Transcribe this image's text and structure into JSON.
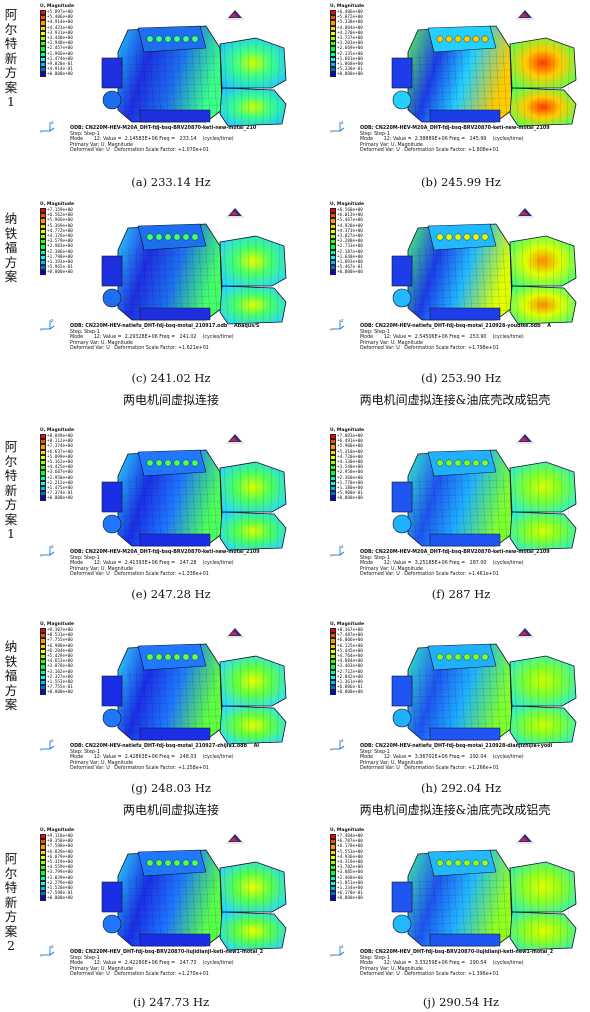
{
  "group_labels": [
    {
      "text": "阿尔特新方案1",
      "top": 8
    },
    {
      "text": "纳铁福方案",
      "top": 212
    },
    {
      "text": "阿尔特新方案1",
      "top": 440
    },
    {
      "text": "纳铁福方案",
      "top": 640
    },
    {
      "text": "阿尔特新方案2",
      "top": 852
    }
  ],
  "row_subcaptions": [
    {
      "left": "两电机间虚拟连接",
      "right": "两电机间虚拟连接&油底壳改成铝壳"
    },
    {
      "left": "两电机间虚拟连接",
      "right": "两电机间虚拟连接&油底壳改成铝壳"
    }
  ],
  "legend_title": "U, Magnitude",
  "legend_colors": [
    "#ff0000",
    "#ff4d00",
    "#ff9900",
    "#ffd000",
    "#e8ff00",
    "#99ff00",
    "#3dff00",
    "#00ff44",
    "#00ffa0",
    "#00ffee",
    "#00b8ff",
    "#0066ff",
    "#0000ff"
  ],
  "info_labels": {
    "step": "Step: Step-1",
    "primary": "Primary Var: U, Magnitude",
    "deformed": "Deformed Var: U   Deformation Scale Factor: "
  },
  "panels": [
    {
      "caption": "(a) 233.14 Hz",
      "odb": "ODB: CN220M-HEV-M20A_DHT-fdj-bsq-BRV20870-keti-new-motai_210",
      "mode": "Mode       12: Value =  2.14583E+06 Freq =   233.14    (cycles/time)",
      "scale": "+1.070e+01",
      "ticks": [
        "+5.897e+00",
        "+5.406e+00",
        "+4.914e+00",
        "+4.423e+00",
        "+3.931e+00",
        "+3.440e+00",
        "+2.948e+00",
        "+2.457e+00",
        "+1.966e+00",
        "+1.474e+00",
        "+9.828e-01",
        "+4.914e-01",
        "+0.000e+00"
      ]
    },
    {
      "caption": "(b) 245.99 Hz",
      "odb": "ODB: CN220M-HEV-M20A_DHT-fdj-bsq-BRV20870-keti-new-motai_2109",
      "mode": "Mode       12: Value =  2.38889E+06 Freq =   245.99    (cycles/time)",
      "scale": "+1.808e+01",
      "ticks": [
        "+6.406e+00",
        "+5.872e+00",
        "+5.338e+00",
        "+4.804e+00",
        "+4.270e+00",
        "+3.737e+00",
        "+3.203e+00",
        "+2.669e+00",
        "+2.135e+00",
        "+1.601e+00",
        "+1.068e+00",
        "+5.338e-01",
        "+0.000e+00"
      ]
    },
    {
      "caption": "(c) 241.02 Hz",
      "odb": "ODB: CN220M-HEV-natiefu_DHT-fdj-bsq-motai_210917.odb    Abaqus/S",
      "mode": "Mode       12: Value =  2.29328E+06 Freq =   241.02    (cycles/time)",
      "scale": "+1.621e+01",
      "ticks": [
        "+7.159e+00",
        "+6.562e+00",
        "+5.966e+00",
        "+5.369e+00",
        "+4.772e+00",
        "+4.176e+00",
        "+3.579e+00",
        "+2.983e+00",
        "+2.386e+00",
        "+1.790e+00",
        "+1.193e+00",
        "+5.965e-01",
        "+0.000e+00"
      ]
    },
    {
      "caption": "(d) 253.90 Hz",
      "odb": "ODB: CN220M-HEV-natiefu_DHT-fdj-bsq-motai_210928-youdike.odb    A",
      "mode": "Mode       12: Value =  2.54506E+06 Freq =   253.90    (cycles/time)",
      "scale": "+1.798e+01",
      "ticks": [
        "+6.560e+00",
        "+6.013e+00",
        "+5.467e+00",
        "+4.920e+00",
        "+4.373e+00",
        "+3.827e+00",
        "+3.280e+00",
        "+2.733e+00",
        "+2.187e+00",
        "+1.640e+00",
        "+1.093e+00",
        "+5.467e-01",
        "+0.000e+00"
      ]
    },
    {
      "caption": "(e) 247.28 Hz",
      "odb": "ODB: CN220M-HEV-M20A_DHT-fdj-bsq-BRV20870-keti-new-motai_2109",
      "mode": "Mode       12: Value =  2.41393E+06 Freq =   247.28    (cycles/time)",
      "scale": "+1.336e+01",
      "ticks": [
        "+8.849e+00",
        "+8.112e+00",
        "+7.374e+00",
        "+6.637e+00",
        "+5.899e+00",
        "+5.162e+00",
        "+4.425e+00",
        "+3.687e+00",
        "+2.950e+00",
        "+2.212e+00",
        "+1.475e+00",
        "+7.374e-01",
        "+0.000e+00"
      ]
    },
    {
      "caption": "(f) 287 Hz",
      "odb": "ODB: CN220M-HEV-M20A_DHT-fdj-bsq-BRV20870-keti-new-motai_2109",
      "mode": "Mode       12: Value =  3.25185E+06 Freq =   287.00    (cycles/time)",
      "scale": "+1.461e+01",
      "ticks": [
        "+7.081e+00",
        "+6.491e+00",
        "+5.900e+00",
        "+5.310e+00",
        "+4.720e+00",
        "+4.130e+00",
        "+3.540e+00",
        "+2.950e+00",
        "+2.360e+00",
        "+1.770e+00",
        "+1.180e+00",
        "+5.900e-01",
        "+0.000e+00"
      ]
    },
    {
      "caption": "(g) 248.03 Hz",
      "odb": "ODB: CN220M-HEV-natiefu_DHT-fdj-bsq-motai_210927-zhijia1.odb    Al",
      "mode": "Mode       12: Value =  2.42863E+06 Freq =   248.03    (cycles/time)",
      "scale": "+1.258e+01",
      "ticks": [
        "+9.307e+00",
        "+8.531e+00",
        "+7.755e+00",
        "+6.980e+00",
        "+6.204e+00",
        "+5.429e+00",
        "+4.653e+00",
        "+3.878e+00",
        "+3.102e+00",
        "+2.327e+00",
        "+1.551e+00",
        "+7.755e-01",
        "+0.000e+00"
      ]
    },
    {
      "caption": "(h) 292.04 Hz",
      "odb": "ODB: CN220M-HEV-natiefu_DHT-fdj-bsq-motai_210928-dianjizhijia+yodi",
      "mode": "Mode       12: Value =  3.36702E+06 Freq =   292.04    (cycles/time)",
      "scale": "+1.266e+01",
      "ticks": [
        "+8.167e+00",
        "+7.487e+00",
        "+6.806e+00",
        "+6.125e+00",
        "+5.445e+00",
        "+4.764e+00",
        "+4.084e+00",
        "+3.403e+00",
        "+2.722e+00",
        "+2.042e+00",
        "+1.361e+00",
        "+6.806e-01",
        "+0.000e+00"
      ]
    },
    {
      "caption": "(i) 247.73 Hz",
      "odb": "ODB: CN220M-HEV_DHT-fdj-bsq-BRV20870-liujidianji-keti-new1-motai_2",
      "mode": "Mode       12: Value =  2.42280E+06 Freq =   247.73    (cycles/time)",
      "scale": "+1.270e+01",
      "ticks": [
        "+9.118e+00",
        "+8.358e+00",
        "+7.598e+00",
        "+6.839e+00",
        "+6.079e+00",
        "+5.319e+00",
        "+4.559e+00",
        "+3.799e+00",
        "+3.039e+00",
        "+2.279e+00",
        "+1.520e+00",
        "+7.598e-01",
        "+0.000e+00"
      ]
    },
    {
      "caption": "(j) 290.54 Hz",
      "odb": "ODB: CN220M-HEV_DHT-fdj-bsq-BRV20870-liujidianji-keti-new1-motai_2",
      "mode": "Mode       12: Value =  3.33259E+06 Freq =   290.54    (cycles/time)",
      "scale": "+1.396e+01",
      "ticks": [
        "+7.404e+00",
        "+6.787e+00",
        "+6.170e+00",
        "+5.553e+00",
        "+4.936e+00",
        "+4.319e+00",
        "+3.702e+00",
        "+3.085e+00",
        "+2.468e+00",
        "+1.851e+00",
        "+1.234e+00",
        "+6.170e-01",
        "+0.000e+00"
      ]
    }
  ]
}
